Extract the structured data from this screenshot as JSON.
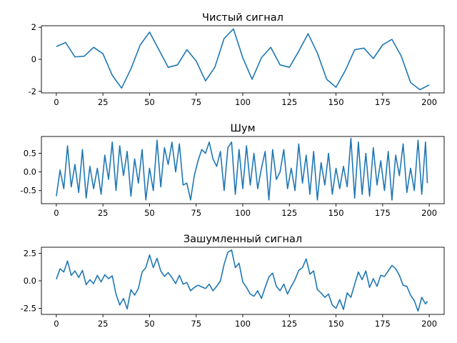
{
  "chart_data": [
    {
      "type": "line",
      "title": "Чистый сигнал",
      "xlabel": "",
      "ylabel": "",
      "xlim": [
        -8,
        208
      ],
      "ylim": [
        -2.1,
        2.1
      ],
      "xticks": [
        0,
        25,
        50,
        75,
        100,
        125,
        150,
        175,
        200
      ],
      "yticks": [
        -2,
        0,
        2
      ],
      "grid": false,
      "series": [
        {
          "color": "#1f77b4",
          "x": [
            0,
            5,
            10,
            15,
            20,
            25,
            30,
            35,
            40,
            45,
            50,
            55,
            60,
            65,
            70,
            75,
            80,
            85,
            90,
            95,
            100,
            105,
            110,
            115,
            120,
            125,
            130,
            135,
            140,
            145,
            150,
            155,
            160,
            165,
            170,
            175,
            180,
            185,
            190,
            195,
            200
          ],
          "y": [
            0.8,
            1.05,
            0.15,
            0.2,
            0.75,
            0.35,
            -1.0,
            -1.8,
            -0.6,
            0.9,
            1.7,
            0.6,
            -0.5,
            -0.35,
            0.6,
            -0.1,
            -1.35,
            -0.5,
            1.3,
            1.9,
            0.1,
            -1.25,
            0.1,
            0.75,
            -0.35,
            -0.5,
            0.5,
            1.6,
            0.4,
            -1.25,
            -1.75,
            -0.7,
            0.6,
            0.7,
            0.05,
            0.9,
            1.25,
            0.2,
            -1.45,
            -1.9,
            -1.6
          ]
        }
      ]
    },
    {
      "type": "line",
      "title": "Шум",
      "xlabel": "",
      "ylabel": "",
      "xlim": [
        -8,
        208
      ],
      "ylim": [
        -0.85,
        0.95
      ],
      "xticks": [
        0,
        25,
        50,
        75,
        100,
        125,
        150,
        175,
        200
      ],
      "yticks": [
        -0.5,
        0.0,
        0.5
      ],
      "grid": false,
      "series": [
        {
          "color": "#1f77b4",
          "x": [
            0,
            2,
            4,
            6,
            8,
            10,
            12,
            14,
            16,
            18,
            20,
            22,
            24,
            26,
            28,
            30,
            32,
            34,
            36,
            38,
            40,
            42,
            44,
            46,
            48,
            50,
            52,
            54,
            56,
            58,
            60,
            62,
            64,
            66,
            68,
            70,
            72,
            74,
            76,
            78,
            80,
            82,
            84,
            86,
            88,
            90,
            92,
            94,
            96,
            98,
            100,
            102,
            104,
            106,
            108,
            110,
            112,
            114,
            116,
            118,
            120,
            122,
            124,
            126,
            128,
            130,
            132,
            134,
            136,
            138,
            140,
            142,
            144,
            146,
            148,
            150,
            152,
            154,
            156,
            158,
            160,
            162,
            164,
            166,
            168,
            170,
            172,
            174,
            176,
            178,
            180,
            182,
            184,
            186,
            188,
            190,
            192,
            194,
            196,
            198,
            199
          ],
          "y": [
            -0.65,
            0.05,
            -0.45,
            0.7,
            -0.4,
            0.2,
            -0.55,
            0.6,
            -0.7,
            0.15,
            -0.45,
            0.1,
            -0.6,
            0.45,
            -0.2,
            0.8,
            -0.5,
            0.7,
            -0.1,
            0.55,
            -0.65,
            0.35,
            -0.3,
            0.6,
            -0.75,
            0.1,
            -0.5,
            0.85,
            -0.4,
            0.65,
            0.2,
            0.8,
            0.0,
            0.75,
            -0.35,
            -0.3,
            -0.75,
            -0.1,
            0.3,
            0.6,
            0.5,
            0.8,
            0.35,
            0.15,
            0.55,
            -0.5,
            0.65,
            0.8,
            -0.6,
            0.6,
            -0.45,
            0.7,
            -0.35,
            0.5,
            -0.45,
            0.1,
            0.55,
            -0.75,
            0.6,
            -0.2,
            0.0,
            0.6,
            -0.45,
            0.1,
            -0.5,
            0.75,
            -0.3,
            0.45,
            -0.6,
            0.55,
            -0.75,
            0.25,
            -0.35,
            0.5,
            -0.6,
            0.1,
            -0.45,
            0.15,
            -0.4,
            0.9,
            -0.7,
            0.8,
            -0.6,
            0.5,
            -0.65,
            0.65,
            -0.35,
            0.3,
            -0.5,
            0.55,
            -0.75,
            0.45,
            -0.1,
            0.75,
            -0.55,
            0.1,
            -0.5,
            0.85,
            -0.6,
            0.8,
            -0.3
          ]
        }
      ]
    },
    {
      "type": "line",
      "title": "Зашумленный сигнал",
      "xlabel": "",
      "ylabel": "",
      "xlim": [
        -8,
        208
      ],
      "ylim": [
        -3.05,
        3.05
      ],
      "xticks": [
        0,
        25,
        50,
        75,
        100,
        125,
        150,
        175,
        200
      ],
      "yticks": [
        -2.5,
        0.0,
        2.5
      ],
      "grid": false,
      "series": [
        {
          "color": "#1f77b4",
          "x": [
            0,
            2,
            4,
            6,
            8,
            10,
            12,
            14,
            16,
            18,
            20,
            22,
            24,
            26,
            28,
            30,
            32,
            34,
            36,
            38,
            40,
            42,
            44,
            46,
            48,
            50,
            52,
            54,
            56,
            58,
            60,
            62,
            64,
            66,
            68,
            70,
            72,
            74,
            76,
            78,
            80,
            82,
            84,
            86,
            88,
            90,
            92,
            94,
            96,
            98,
            100,
            102,
            104,
            106,
            108,
            110,
            112,
            114,
            116,
            118,
            120,
            122,
            124,
            126,
            128,
            130,
            132,
            134,
            136,
            138,
            140,
            142,
            144,
            146,
            148,
            150,
            152,
            154,
            156,
            158,
            160,
            162,
            164,
            166,
            168,
            170,
            172,
            174,
            176,
            178,
            180,
            182,
            184,
            186,
            188,
            190,
            192,
            194,
            196,
            198,
            199
          ],
          "y": [
            0.15,
            1.1,
            0.8,
            1.8,
            0.5,
            0.9,
            0.3,
            0.95,
            -0.35,
            0.1,
            -0.25,
            0.5,
            -0.1,
            0.55,
            0.2,
            0.45,
            -1.2,
            -2.2,
            -1.6,
            -2.55,
            -0.8,
            -1.3,
            -0.7,
            0.8,
            1.2,
            2.35,
            1.2,
            2.05,
            0.9,
            0.4,
            0.75,
            0.3,
            -0.25,
            0.5,
            -0.3,
            -0.15,
            -0.9,
            -0.6,
            -0.4,
            -0.55,
            -0.7,
            -0.3,
            -0.9,
            -0.5,
            0.0,
            1.5,
            2.6,
            2.8,
            1.2,
            1.6,
            -0.1,
            -0.6,
            -1.2,
            -1.4,
            -0.9,
            -1.6,
            -0.6,
            0.35,
            0.7,
            -0.5,
            -0.9,
            -0.3,
            -1.2,
            -0.5,
            0.1,
            0.95,
            1.2,
            2.0,
            0.6,
            0.9,
            -0.8,
            -1.1,
            -1.5,
            -1.2,
            -2.2,
            -2.5,
            -1.7,
            -2.6,
            -1.1,
            -1.5,
            -0.3,
            0.8,
            0.1,
            0.9,
            -0.6,
            0.2,
            -0.5,
            0.5,
            0.4,
            0.9,
            1.4,
            1.1,
            0.5,
            -0.4,
            -0.5,
            -1.3,
            -1.8,
            -2.75,
            -1.5,
            -2.1,
            -1.85
          ]
        }
      ]
    }
  ]
}
